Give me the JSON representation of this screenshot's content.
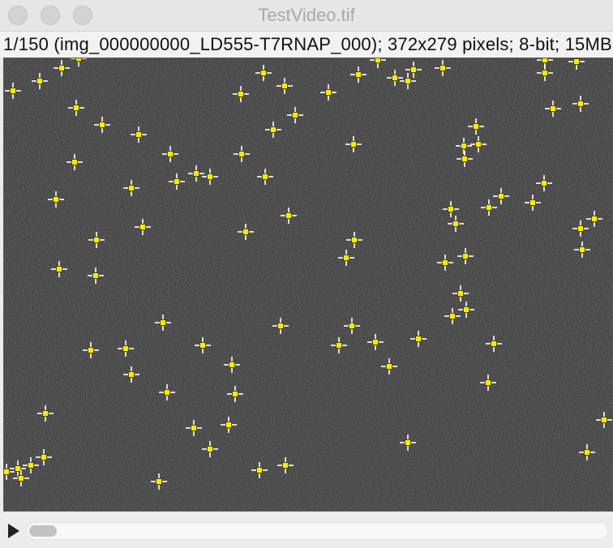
{
  "window": {
    "title": "TestVideo.tif"
  },
  "info_bar": {
    "text": "1/150 (img_000000000_LD555-T7RNAP_000); 372x279 pixels; 8-bit; 15MB"
  },
  "playback": {
    "play_icon": "play-triangle-icon",
    "slider_value": 1
  },
  "colors": {
    "marker_fill": "#ffeb00",
    "marker_cross": "#ffffff",
    "image_background": "#2b2b2b"
  }
}
